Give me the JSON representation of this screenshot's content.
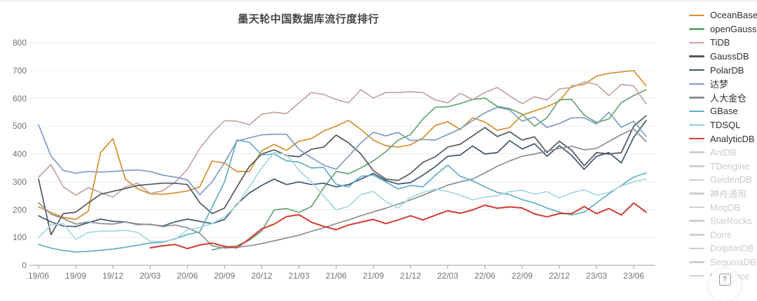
{
  "title": "墨天轮中国数据库流行度排行",
  "help_icon": "?",
  "chart_data": {
    "type": "line",
    "title": "墨天轮中国数据库流行度排行",
    "xlabel": "",
    "ylabel": "",
    "ylim": [
      0,
      800
    ],
    "y_ticks": [
      0,
      100,
      200,
      300,
      400,
      500,
      600,
      700,
      800
    ],
    "grid": true,
    "grid_color": "#e6edf5",
    "axis_color": "#9aa0a6",
    "legend_position": "right",
    "x": [
      "19/06",
      "19/07",
      "19/08",
      "19/09",
      "19/10",
      "19/11",
      "19/12",
      "20/01",
      "20/02",
      "20/03",
      "20/04",
      "20/05",
      "20/06",
      "20/07",
      "20/08",
      "20/09",
      "20/10",
      "20/11",
      "20/12",
      "21/01",
      "21/02",
      "21/03",
      "21/04",
      "21/05",
      "21/06",
      "21/07",
      "21/08",
      "21/09",
      "21/10",
      "21/11",
      "21/12",
      "22/01",
      "22/02",
      "22/03",
      "22/04",
      "22/05",
      "22/06",
      "22/07",
      "22/08",
      "22/09",
      "22/10",
      "22/11",
      "22/12",
      "23/01",
      "23/02",
      "23/03",
      "23/04",
      "23/05",
      "23/06",
      "23/07"
    ],
    "x_tick_labels": [
      "19/06",
      "19/09",
      "19/12",
      "20/03",
      "20/06",
      "20/09",
      "20/12",
      "21/03",
      "21/06",
      "21/09",
      "21/12",
      "22/03",
      "22/06",
      "22/09",
      "22/12",
      "23/03",
      "23/06"
    ],
    "x_tick_every": 3,
    "series": [
      {
        "id": "oceanbase",
        "name": "OceanBase",
        "color": "#d78f2c",
        "values": [
          210,
          190,
          172,
          165,
          194,
          405,
          455,
          310,
          275,
          257,
          255,
          260,
          267,
          282,
          375,
          367,
          337,
          337,
          412,
          435,
          413,
          446,
          455,
          483,
          500,
          521,
          488,
          450,
          430,
          425,
          433,
          458,
          503,
          516,
          488,
          530,
          515,
          485,
          495,
          540,
          555,
          570,
          590,
          645,
          650,
          680,
          690,
          695,
          700,
          645
        ]
      },
      {
        "id": "opengauss",
        "name": "openGauss",
        "color": "#68a474",
        "values": [
          null,
          null,
          null,
          null,
          null,
          null,
          null,
          null,
          null,
          null,
          null,
          null,
          null,
          null,
          55,
          65,
          70,
          90,
          123,
          199,
          204,
          190,
          211,
          279,
          337,
          329,
          350,
          375,
          408,
          450,
          470,
          526,
          568,
          570,
          581,
          596,
          601,
          571,
          563,
          543,
          500,
          530,
          595,
          596,
          540,
          513,
          526,
          585,
          610,
          631
        ]
      },
      {
        "id": "tidb",
        "name": "TiDB",
        "color": "#c4a4a0",
        "values": [
          317,
          362,
          282,
          252,
          279,
          262,
          245,
          282,
          295,
          258,
          268,
          298,
          345,
          420,
          475,
          520,
          518,
          505,
          543,
          550,
          545,
          584,
          621,
          614,
          596,
          584,
          631,
          601,
          621,
          621,
          624,
          621,
          594,
          584,
          618,
          596,
          621,
          639,
          609,
          581,
          606,
          594,
          634,
          639,
          659,
          650,
          610,
          650,
          645,
          580
        ]
      },
      {
        "id": "gaussdb",
        "name": "GaussDB",
        "color": "#50575f",
        "values": [
          310,
          110,
          186,
          191,
          224,
          255,
          266,
          276,
          287,
          291,
          295,
          295,
          290,
          225,
          186,
          206,
          282,
          355,
          400,
          415,
          395,
          390,
          417,
          425,
          468,
          440,
          400,
          340,
          310,
          305,
          330,
          370,
          390,
          425,
          435,
          465,
          495,
          463,
          480,
          450,
          462,
          405,
          446,
          413,
          358,
          405,
          400,
          405,
          500,
          538
        ]
      },
      {
        "id": "polardb",
        "name": "PolarDB",
        "color": "#3d5871",
        "values": [
          178,
          156,
          141,
          139,
          153,
          166,
          158,
          156,
          148,
          147,
          141,
          156,
          166,
          158,
          150,
          165,
          220,
          260,
          287,
          310,
          290,
          300,
          290,
          295,
          282,
          290,
          310,
          330,
          305,
          292,
          297,
          324,
          355,
          392,
          396,
          429,
          400,
          405,
          448,
          418,
          437,
          392,
          430,
          395,
          345,
          392,
          405,
          368,
          460,
          520
        ]
      },
      {
        "id": "dameng",
        "name": "达梦",
        "color": "#7e9cc5",
        "values": [
          505,
          393,
          341,
          331,
          337,
          335,
          337,
          341,
          343,
          337,
          324,
          317,
          307,
          254,
          300,
          370,
          446,
          458,
          469,
          471,
          471,
          417,
          387,
          360,
          345,
          392,
          440,
          478,
          465,
          478,
          448,
          452,
          450,
          470,
          490,
          520,
          548,
          568,
          558,
          518,
          533,
          495,
          510,
          530,
          530,
          508,
          550,
          496,
          518,
          463
        ]
      },
      {
        "id": "rendajincang",
        "name": "人大金仓",
        "color": "#8b9097",
        "values": [
          225,
          184,
          168,
          148,
          156,
          150,
          148,
          156,
          146,
          148,
          139,
          145,
          135,
          115,
          70,
          62,
          65,
          70,
          78,
          88,
          98,
          108,
          122,
          135,
          150,
          163,
          178,
          192,
          205,
          220,
          235,
          252,
          270,
          288,
          300,
          310,
          332,
          356,
          375,
          392,
          400,
          410,
          420,
          428,
          415,
          420,
          445,
          470,
          490,
          445
        ]
      },
      {
        "id": "gbase",
        "name": "GBase",
        "color": "#62aec4",
        "values": [
          75,
          62,
          53,
          48,
          50,
          54,
          58,
          65,
          72,
          80,
          83,
          95,
          111,
          120,
          210,
          300,
          450,
          442,
          397,
          400,
          375,
          371,
          350,
          352,
          291,
          282,
          320,
          324,
          300,
          274,
          287,
          282,
          324,
          360,
          320,
          304,
          282,
          262,
          254,
          236,
          224,
          206,
          191,
          181,
          191,
          224,
          257,
          287,
          317,
          332
        ]
      },
      {
        "id": "tdsql",
        "name": "TDSQL",
        "color": "#a7d7de",
        "values": [
          100,
          145,
          150,
          93,
          118,
          123,
          123,
          126,
          118,
          86,
          86,
          93,
          128,
          136,
          150,
          174,
          216,
          282,
          350,
          405,
          398,
          342,
          300,
          249,
          199,
          212,
          254,
          266,
          229,
          206,
          244,
          262,
          274,
          265,
          252,
          235,
          245,
          250,
          265,
          270,
          255,
          265,
          242,
          260,
          272,
          252,
          262,
          285,
          300,
          310
        ]
      },
      {
        "id": "analyticdb",
        "name": "AnalyticDB",
        "color": "#d23a31",
        "values": [
          null,
          null,
          null,
          null,
          null,
          null,
          null,
          null,
          null,
          63,
          70,
          75,
          60,
          73,
          80,
          68,
          63,
          95,
          131,
          148,
          175,
          182,
          155,
          140,
          128,
          145,
          155,
          165,
          150,
          163,
          178,
          163,
          180,
          196,
          187,
          199,
          216,
          205,
          210,
          206,
          185,
          174,
          186,
          186,
          211,
          186,
          204,
          181,
          224,
          191
        ]
      }
    ]
  },
  "legend": {
    "inactive_color": "#cdd0d4",
    "items": [
      {
        "id": "oceanbase",
        "label": "OceanBase",
        "active": true
      },
      {
        "id": "opengauss",
        "label": "openGauss",
        "active": true
      },
      {
        "id": "tidb",
        "label": "TiDB",
        "active": true
      },
      {
        "id": "gaussdb",
        "label": "GaussDB",
        "active": true
      },
      {
        "id": "polardb",
        "label": "PolarDB",
        "active": true
      },
      {
        "id": "dameng",
        "label": "达梦",
        "active": true
      },
      {
        "id": "rendajincang",
        "label": "人大金仓",
        "active": true
      },
      {
        "id": "gbase",
        "label": "GBase",
        "active": true
      },
      {
        "id": "tdsql",
        "label": "TDSQL",
        "active": true
      },
      {
        "id": "analyticdb",
        "label": "AnalyticDB",
        "active": true
      },
      {
        "id": "antdb",
        "label": "AntDB",
        "active": false
      },
      {
        "id": "tdengine",
        "label": "TDengine",
        "active": false
      },
      {
        "id": "goldendb",
        "label": "GoldenDB",
        "active": false
      },
      {
        "id": "shenzhoutongyong",
        "label": "神舟通用",
        "active": false
      },
      {
        "id": "mogdb",
        "label": "MogDB",
        "active": false
      },
      {
        "id": "starrocks",
        "label": "StarRocks",
        "active": false
      },
      {
        "id": "doris",
        "label": "Doris",
        "active": false
      },
      {
        "id": "dolphindb",
        "label": "DolphinDB",
        "active": false
      },
      {
        "id": "sequoiadb",
        "label": "SequoiaDB",
        "active": false
      },
      {
        "id": "kyligence",
        "label": "Kyligence",
        "active": false
      }
    ]
  }
}
